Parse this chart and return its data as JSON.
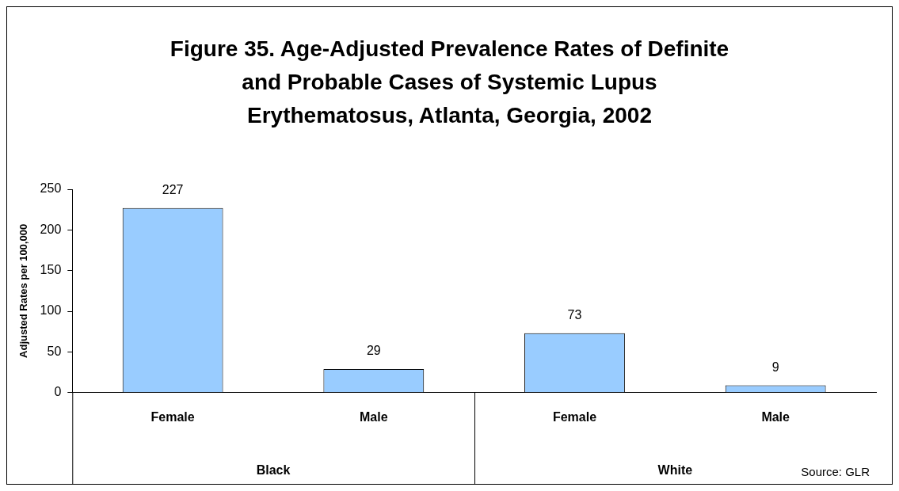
{
  "chart_data": {
    "type": "bar",
    "title": "Figure 35. Age-Adjusted Prevalence Rates of Definite and Probable Cases of Systemic Lupus Erythematosus, Atlanta, Georgia, 2002",
    "categories": [
      "Female",
      "Male",
      "Female",
      "Male"
    ],
    "values": [
      227,
      29,
      73,
      9
    ],
    "color": "#99ccff",
    "ylabel": "Adjusted Rates per 100,000",
    "ylim": [
      0,
      250
    ],
    "yticks": [
      0,
      50,
      100,
      150,
      200,
      250
    ],
    "data_labels": true,
    "grid": false,
    "legend": false,
    "annotations": [
      "Black",
      "White",
      "Source: GLR"
    ]
  }
}
